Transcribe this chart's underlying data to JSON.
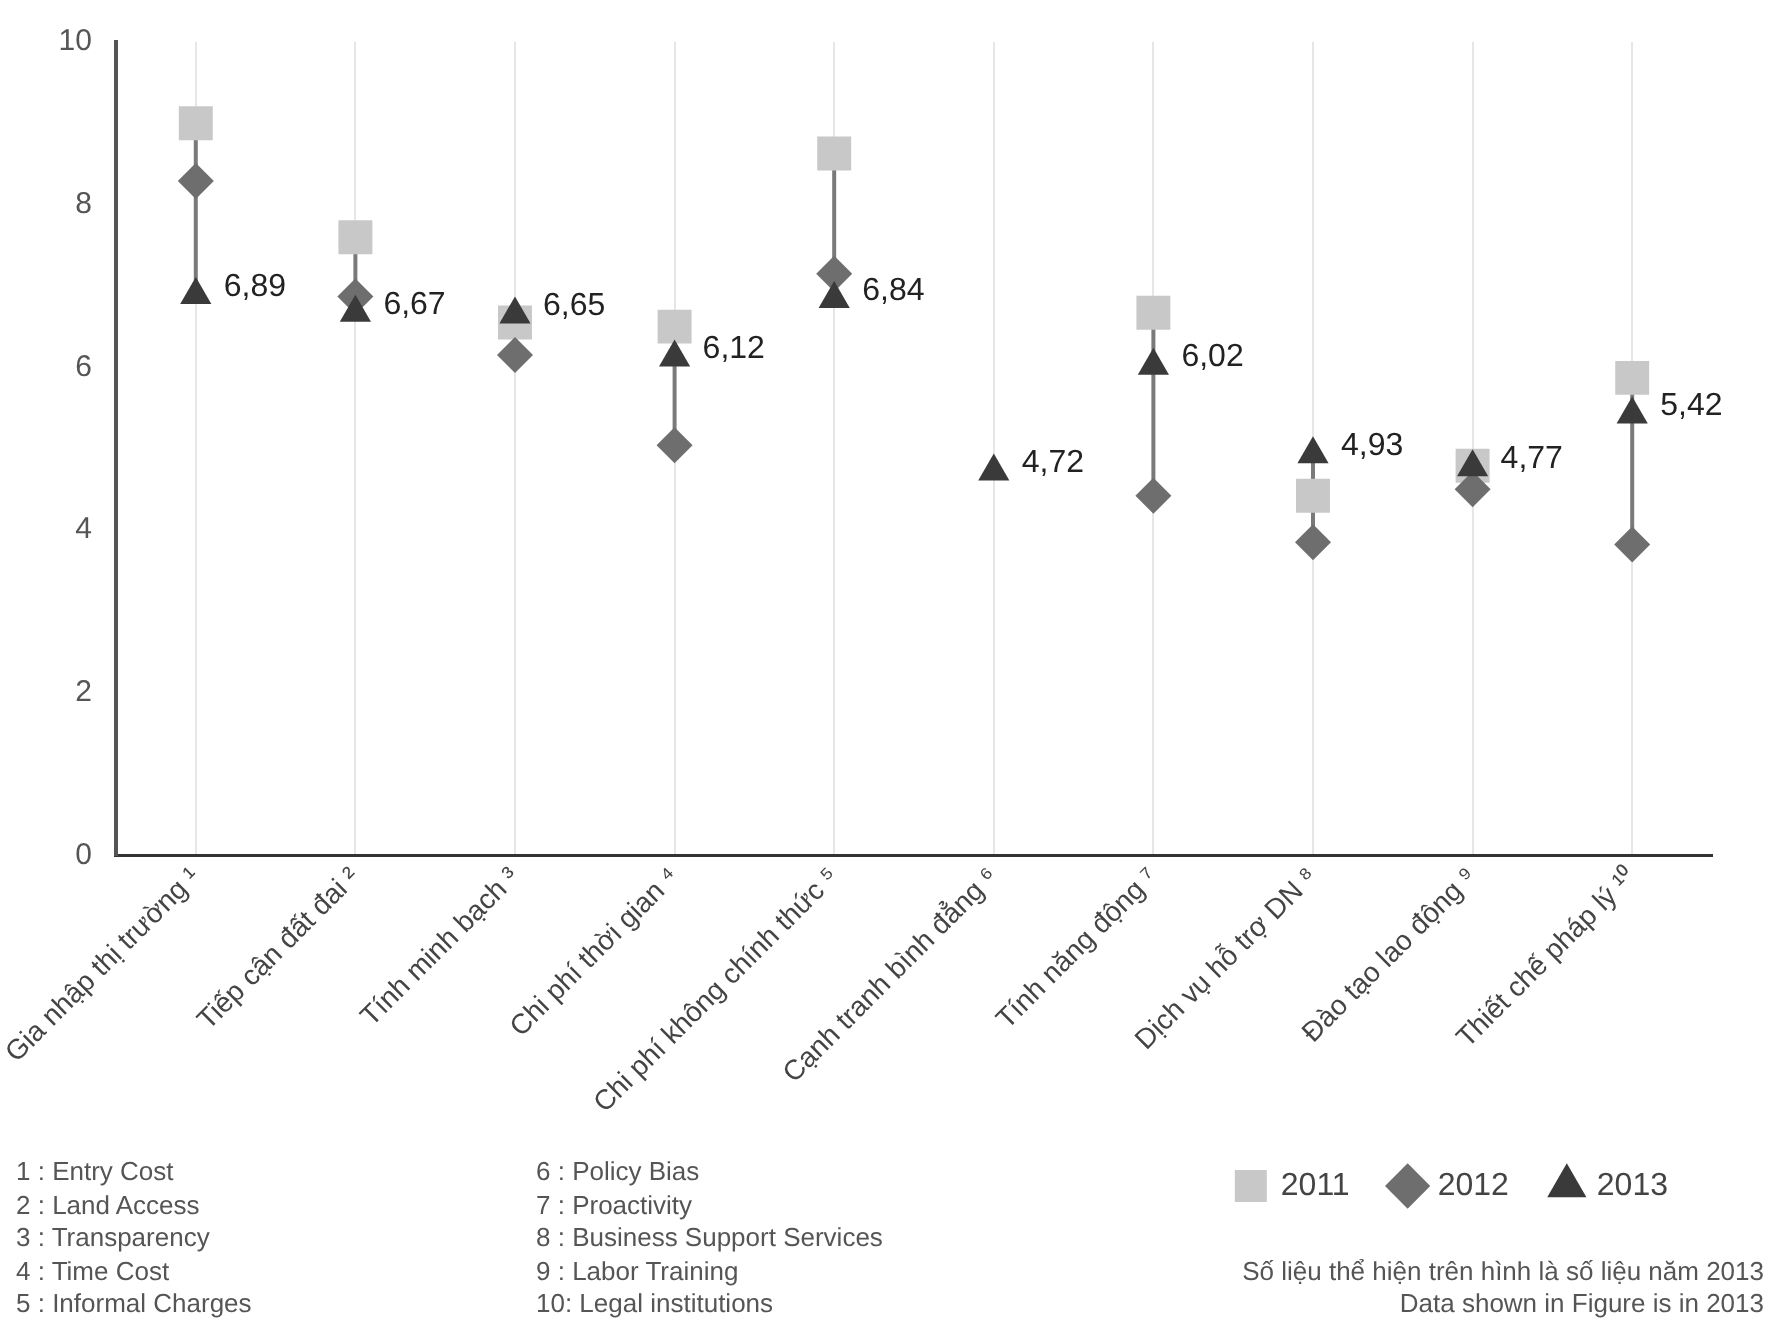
{
  "chart_data": {
    "type": "scatter",
    "categories": [
      "Gia nhập thị trường ¹",
      "Tiếp cận đất đai ²",
      "Tính minh bạch ³",
      "Chi phí thời gian ⁴",
      "Chi phí không chính thức ⁵",
      "Cạnh tranh bình đẳng ⁶",
      "Tính năng động ⁷",
      "Dịch vụ hỗ trợ DN ⁸",
      "Đào tạo lao động ⁹",
      "Thiết chế pháp lý ¹⁰"
    ],
    "series": [
      {
        "name": "2011",
        "color": "#c8c8c8",
        "marker": "square",
        "values": [
          9.0,
          7.6,
          6.55,
          6.5,
          8.63,
          null,
          6.67,
          4.42,
          4.79,
          5.87
        ]
      },
      {
        "name": "2012",
        "color": "#6e6e6e",
        "marker": "diamond",
        "values": [
          8.29,
          6.87,
          6.15,
          5.04,
          7.15,
          null,
          4.42,
          3.85,
          4.5,
          3.82
        ]
      },
      {
        "name": "2013",
        "color": "#3a3a3a",
        "marker": "triangle",
        "values": [
          6.89,
          6.67,
          6.65,
          6.12,
          6.84,
          4.72,
          6.02,
          4.93,
          4.77,
          5.42
        ],
        "value_labels": [
          "6,89",
          "6,67",
          "6,65",
          "6,12",
          "6,84",
          "4,72",
          "6,02",
          "4,93",
          "4,77",
          "5,42"
        ]
      }
    ],
    "ylim": [
      0,
      10
    ],
    "yticks": [
      0,
      2,
      4,
      6,
      8,
      10
    ],
    "grid": "x",
    "legend": "bottom right",
    "annotations": [
      "1 : Entry Cost",
      "2 : Land Access",
      "3 : Transparency",
      "4 : Time Cost",
      "5 : Informal Charges",
      "6 : Policy Bias",
      "7 : Proactivity",
      "8 : Business Support Services",
      "9 : Labor Training",
      "10: Legal institutions",
      "Số liệu thể hiện trên hình là số liệu năm 2013",
      "Data shown in Figure is in 2013"
    ]
  }
}
